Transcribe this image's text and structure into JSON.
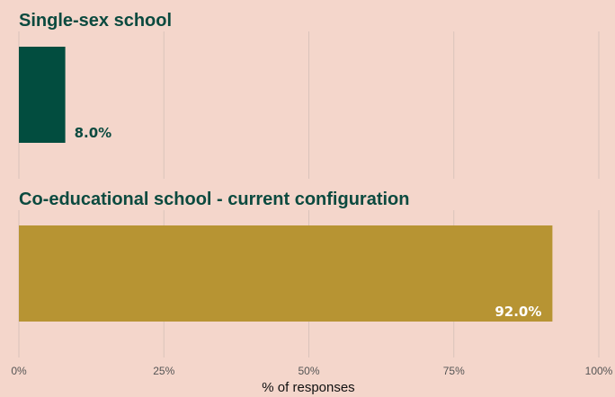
{
  "chart_data": {
    "type": "bar",
    "orientation": "horizontal",
    "categories": [
      "Single-sex school",
      "Co-educational school - current configuration"
    ],
    "values": [
      8.0,
      92.0
    ],
    "value_labels": [
      "8.0%",
      "92.0%"
    ],
    "colors": [
      "#024d3f",
      "#b79433"
    ],
    "value_label_colors": [
      "#0b4a3f",
      "#ffffff"
    ],
    "xlabel": "% of responses",
    "xlim": [
      0,
      100
    ],
    "xticks": [
      0,
      25,
      50,
      75,
      100
    ],
    "xtick_labels": [
      "0%",
      "25%",
      "50%",
      "75%",
      "100%"
    ],
    "grid": true
  }
}
